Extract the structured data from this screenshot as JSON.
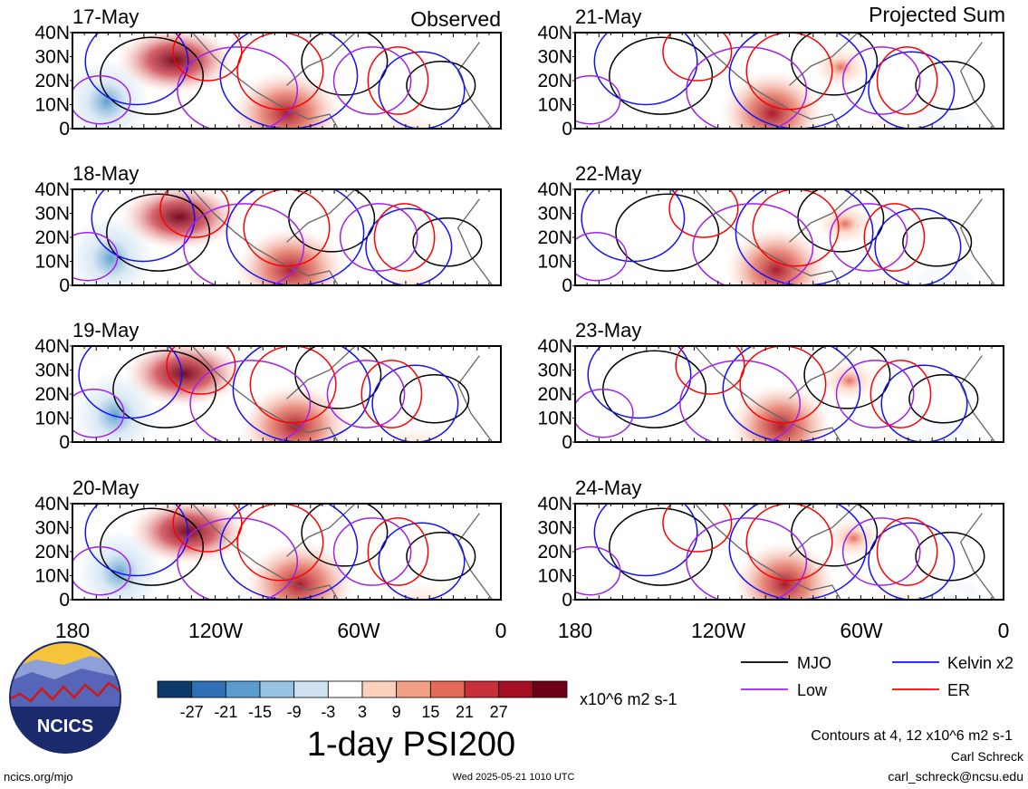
{
  "left_column_header": "Observed",
  "right_column_header": "Projected Sum",
  "panels": [
    {
      "date": "17-May",
      "column": "left"
    },
    {
      "date": "18-May",
      "column": "left"
    },
    {
      "date": "19-May",
      "column": "left"
    },
    {
      "date": "20-May",
      "column": "left"
    },
    {
      "date": "21-May",
      "column": "right"
    },
    {
      "date": "22-May",
      "column": "right"
    },
    {
      "date": "23-May",
      "column": "right"
    },
    {
      "date": "24-May",
      "column": "right"
    }
  ],
  "lat_ticks": [
    "40N",
    "30N",
    "20N",
    "10N",
    "0"
  ],
  "lon_ticks": [
    "180",
    "120W",
    "60W",
    "0"
  ],
  "colorbar": {
    "colors": [
      "#0d3a6b",
      "#2f6fb3",
      "#5a9ccd",
      "#97c2e2",
      "#cfe2f1",
      "#ffffff",
      "#fbd1bd",
      "#f2a184",
      "#e26a56",
      "#c7303b",
      "#a50f24",
      "#6d0017"
    ],
    "labels": [
      "-27",
      "-21",
      "-15",
      "-9",
      "-3",
      "3",
      "9",
      "15",
      "21",
      "27"
    ],
    "units": "x10^6 m2 s-1"
  },
  "title": "1-day PSI200",
  "legend": [
    {
      "name": "MJO",
      "color": "#000000"
    },
    {
      "name": "Kelvin x2",
      "color": "#1010ff"
    },
    {
      "name": "Low",
      "color": "#a020f0"
    },
    {
      "name": "ER",
      "color": "#ff0000"
    }
  ],
  "contours_note": "Contours at 4, 12 x10^6 m2 s-1",
  "author": "Carl Schreck",
  "email": "carl_schreck@ncsu.edu",
  "logo_text": "NCICS",
  "website": "ncics.org/mjo",
  "timestamp": "Wed 2025-05-21 1010 UTC"
}
